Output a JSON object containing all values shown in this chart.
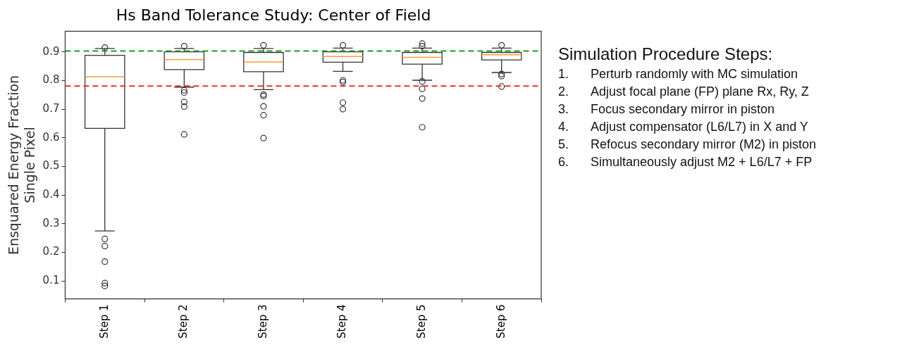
{
  "chart_data": {
    "type": "box",
    "title": "Hs Band Tolerance Study: Center of Field",
    "ylabel": "Ensquared Energy Fraction\nSingle Pixel",
    "categories": [
      "Step 1",
      "Step 2",
      "Step 3",
      "Step 4",
      "Step 5",
      "Step 6"
    ],
    "series": [
      {
        "color": "#333333",
        "boxes": [
          {
            "low": 0.275,
            "q1": 0.633,
            "median": 0.813,
            "q3": 0.888,
            "high": 0.912,
            "outliers": [
              0.915,
              0.247,
              0.222,
              0.168,
              0.093,
              0.083
            ]
          },
          {
            "low": 0.777,
            "q1": 0.838,
            "median": 0.873,
            "q3": 0.9,
            "high": 0.912,
            "outliers": [
              0.92,
              0.766,
              0.758,
              0.725,
              0.709,
              0.612
            ]
          },
          {
            "low": 0.768,
            "q1": 0.831,
            "median": 0.865,
            "q3": 0.898,
            "high": 0.912,
            "outliers": [
              0.923,
              0.751,
              0.746,
              0.71,
              0.679,
              0.599
            ]
          },
          {
            "low": 0.832,
            "q1": 0.864,
            "median": 0.884,
            "q3": 0.9,
            "high": 0.913,
            "outliers": [
              0.923,
              0.801,
              0.795,
              0.723,
              0.7
            ]
          },
          {
            "low": 0.801,
            "q1": 0.857,
            "median": 0.881,
            "q3": 0.898,
            "high": 0.913,
            "outliers": [
              0.929,
              0.92,
              0.797,
              0.771,
              0.737,
              0.637
            ]
          },
          {
            "low": 0.828,
            "q1": 0.872,
            "median": 0.89,
            "q3": 0.898,
            "high": 0.913,
            "outliers": [
              0.923,
              0.823,
              0.816,
              0.779
            ]
          }
        ]
      }
    ],
    "ylim": [
      0.038,
      0.972
    ],
    "yticks": [
      0.1,
      0.2,
      0.3,
      0.4,
      0.5,
      0.6,
      0.7,
      0.8,
      0.9
    ],
    "grid": false,
    "legend": false,
    "ref_lines": [
      {
        "axis": "y",
        "value": 0.903,
        "color": "#1f9a1f",
        "line_style": "dashed"
      },
      {
        "axis": "y",
        "value": 0.781,
        "color": "#ff2a2a",
        "line_style": "dashed"
      }
    ],
    "annotations": [
      "Simulation Procedure Steps:",
      "1.\tPerturb randomly with MC simulation",
      "2.\tAdjust focal plane (FP) plane Rx, Ry, Z",
      "3.\tFocus secondary mirror in piston",
      "4.\tAdjust compensator (L6/L7) in X and Y",
      "5.\tRefocus secondary mirror (M2) in piston",
      "6.\tSimultaneously adjust M2 + L6/L7 + FP"
    ]
  }
}
